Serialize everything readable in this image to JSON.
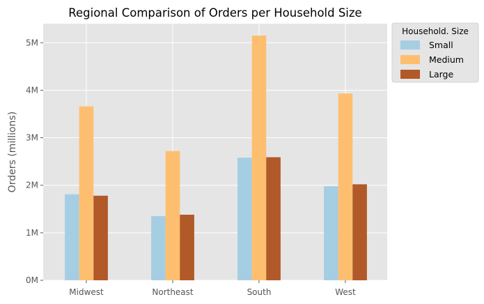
{
  "chart_data": {
    "type": "bar",
    "title": "Regional Comparison of Orders per Household Size",
    "xlabel": "",
    "ylabel": "Orders (millions)",
    "categories": [
      "Midwest",
      "Northeast",
      "South",
      "West"
    ],
    "series": [
      {
        "name": "Small",
        "values": [
          1.81,
          1.35,
          2.58,
          1.98
        ],
        "color": "#a6cee3"
      },
      {
        "name": "Medium",
        "values": [
          3.66,
          2.72,
          5.15,
          3.93
        ],
        "color": "#fdbf6f"
      },
      {
        "name": "Large",
        "values": [
          1.78,
          1.38,
          2.59,
          2.02
        ],
        "color": "#b15928"
      }
    ],
    "ylim": [
      0,
      5.4
    ],
    "yticks": [
      {
        "value": 0,
        "label": "0M"
      },
      {
        "value": 1,
        "label": "1M"
      },
      {
        "value": 2,
        "label": "2M"
      },
      {
        "value": 3,
        "label": "3M"
      },
      {
        "value": 4,
        "label": "4M"
      },
      {
        "value": 5,
        "label": "5M"
      }
    ],
    "grid": true,
    "plot_background": "#e5e5e5",
    "grid_color": "#ffffff",
    "legend": {
      "title": "Household. Size",
      "placement": "outside-top-right"
    }
  }
}
